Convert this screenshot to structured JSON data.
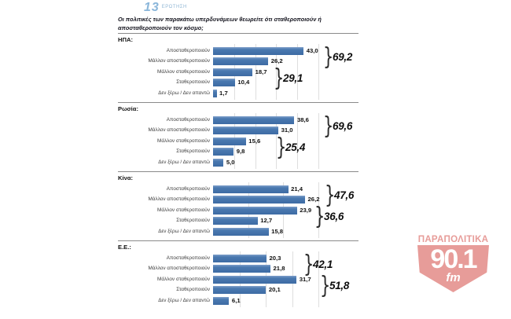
{
  "page": {
    "figure_number": "13",
    "figure_caption": "ΕΡΩΤΗΣΗ",
    "question": "Οι πολιτικές των παρακάτω υπερδυνάμεων θεωρείτε ότι σταθεροποιούν ή αποσταθεροποιούν τον κόσμο;"
  },
  "colors": {
    "bar_blue": "#4a79b0",
    "accent_blue": "#8ab6da",
    "grid": "#dedede",
    "rule": "#8a8a8a",
    "text": "#101010",
    "logo_red": "#e79c99"
  },
  "logo": {
    "brand": "ΠΑΡΑΠΟΛΙΤΙΚΑ",
    "frequency": "90.1",
    "band": "fm"
  },
  "chart_data": [
    {
      "type": "bar",
      "orientation": "horizontal",
      "title": "ΗΠΑ:",
      "categories": [
        "Αποσταθεροποιούν",
        "Μάλλον αποσταθεροποιούν",
        "Μάλλον σταθεροποιούν",
        "Σταθεροποιούν",
        "Δεν ξέρω / Δεν απαντώ"
      ],
      "values": [
        43.0,
        26.2,
        18.7,
        10.4,
        1.7
      ],
      "value_labels": [
        "43,0",
        "26,2",
        "18,7",
        "10,4",
        "1,7"
      ],
      "xlim": [
        0,
        50
      ],
      "grid_step": 10,
      "groups": [
        {
          "label": "69,2",
          "rows": [
            0,
            1
          ],
          "brace_x": 263
        },
        {
          "label": "29,1",
          "rows": [
            2,
            3
          ],
          "brace_x": 200
        }
      ]
    },
    {
      "type": "bar",
      "orientation": "horizontal",
      "title": "Ρωσία:",
      "categories": [
        "Αποσταθεροποιούν",
        "Μάλλον αποσταθεροποιούν",
        "Μάλλον σταθεροποιούν",
        "Σταθεροποιούν",
        "Δεν ξέρω / Δεν απαντώ"
      ],
      "values": [
        38.6,
        31.0,
        15.6,
        9.8,
        5.0
      ],
      "value_labels": [
        "38,6",
        "31,0",
        "15,6",
        "9,8",
        "5,0"
      ],
      "xlim": [
        0,
        50
      ],
      "grid_step": 10,
      "groups": [
        {
          "label": "69,6",
          "rows": [
            0,
            1
          ],
          "brace_x": 263
        },
        {
          "label": "25,4",
          "rows": [
            2,
            3
          ],
          "brace_x": 203
        }
      ]
    },
    {
      "type": "bar",
      "orientation": "horizontal",
      "title": "Κίνα:",
      "categories": [
        "Αποσταθεροποιούν",
        "Μάλλον αποσταθεροποιούν",
        "Μάλλον σταθεροποιούν",
        "Σταθεροποιούν",
        "Δεν ξέρω / Δεν απαντώ"
      ],
      "values": [
        21.4,
        26.2,
        23.9,
        12.7,
        15.8
      ],
      "value_labels": [
        "21,4",
        "26,2",
        "23,9",
        "12,7",
        "15,8"
      ],
      "xlim": [
        0,
        30
      ],
      "grid_step": 10,
      "groups": [
        {
          "label": "47,6",
          "rows": [
            0,
            1
          ],
          "brace_x": 265
        },
        {
          "label": "36,6",
          "rows": [
            2,
            3
          ],
          "brace_x": 252
        }
      ]
    },
    {
      "type": "bar",
      "orientation": "horizontal",
      "title": "Ε.Ε.:",
      "categories": [
        "Αποσταθεροποιούν",
        "Μάλλον αποσταθεροποιούν",
        "Μάλλον σταθεροποιούν",
        "Σταθεροποιούν",
        "Δεν ξέρω / Δεν απαντώ"
      ],
      "values": [
        20.3,
        21.8,
        31.7,
        20.1,
        6.1
      ],
      "value_labels": [
        "20,3",
        "21,8",
        "31,7",
        "20,1",
        "6,1"
      ],
      "xlim": [
        0,
        40
      ],
      "grid_step": 10,
      "groups": [
        {
          "label": "42,1",
          "rows": [
            0,
            1
          ],
          "brace_x": 238
        },
        {
          "label": "51,8",
          "rows": [
            2,
            3
          ],
          "brace_x": 259
        }
      ]
    }
  ]
}
